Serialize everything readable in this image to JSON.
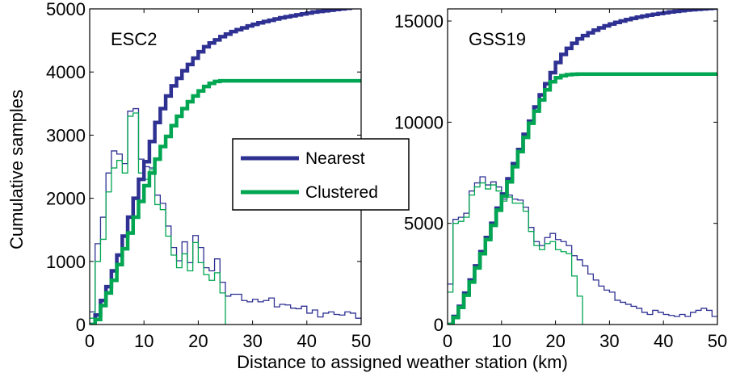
{
  "shared": {
    "xlabel": "Distance to assigned weather station (km)",
    "ylabel": "Cumulative samples",
    "legend": [
      {
        "name": "Nearest",
        "color": "#2e3192"
      },
      {
        "name": "Clustered",
        "color": "#00a651"
      }
    ]
  },
  "chart_data": [
    {
      "type": "line",
      "title": "ESC2",
      "xlim": [
        0,
        50
      ],
      "ylim": [
        0,
        5000
      ],
      "xticks": [
        0,
        10,
        20,
        30,
        40,
        50
      ],
      "yticks": [
        0,
        1000,
        2000,
        3000,
        4000,
        5000
      ],
      "cumulative": [
        {
          "name": "Nearest",
          "x": [
            0,
            1,
            2,
            3,
            4,
            5,
            6,
            7,
            8,
            9,
            10,
            11,
            12,
            13,
            14,
            15,
            16,
            17,
            18,
            19,
            20,
            21,
            22,
            23,
            24,
            25,
            26,
            27,
            28,
            29,
            30,
            31,
            32,
            33,
            34,
            35,
            36,
            37,
            38,
            39,
            40,
            41,
            42,
            43,
            44,
            45,
            46,
            47,
            48,
            49,
            50
          ],
          "values": [
            0,
            150,
            380,
            600,
            850,
            1100,
            1400,
            1700,
            2000,
            2300,
            2580,
            2900,
            3200,
            3420,
            3620,
            3780,
            3900,
            4020,
            4120,
            4220,
            4320,
            4400,
            4460,
            4510,
            4560,
            4600,
            4640,
            4670,
            4700,
            4730,
            4755,
            4780,
            4800,
            4820,
            4840,
            4860,
            4875,
            4890,
            4905,
            4920,
            4935,
            4950,
            4960,
            4970,
            4980,
            4990,
            5000,
            5010,
            5020,
            5030,
            5030
          ]
        },
        {
          "name": "Clustered",
          "x": [
            0,
            1,
            2,
            3,
            4,
            5,
            6,
            7,
            8,
            9,
            10,
            11,
            12,
            13,
            14,
            15,
            16,
            17,
            18,
            19,
            20,
            21,
            22,
            23,
            24,
            25,
            50
          ],
          "values": [
            0,
            80,
            300,
            500,
            700,
            950,
            1200,
            1450,
            1700,
            1950,
            2200,
            2400,
            2620,
            2820,
            2980,
            3150,
            3300,
            3420,
            3530,
            3620,
            3700,
            3770,
            3820,
            3850,
            3860,
            3860,
            3860
          ]
        }
      ],
      "histogram": [
        {
          "name": "Nearest",
          "x": [
            0,
            1,
            2,
            3,
            4,
            5,
            6,
            7,
            8,
            9,
            10,
            11,
            12,
            13,
            14,
            15,
            16,
            17,
            18,
            19,
            20,
            21,
            22,
            23,
            24,
            25,
            26,
            27,
            28,
            29,
            30,
            31,
            32,
            33,
            34,
            35,
            36,
            37,
            38,
            39,
            40,
            41,
            42,
            43,
            44,
            45,
            46,
            47,
            48,
            49,
            50
          ],
          "values": [
            200,
            1280,
            1700,
            2400,
            2750,
            2700,
            2550,
            3380,
            3420,
            2620,
            2500,
            2480,
            2050,
            1920,
            1560,
            1220,
            1010,
            1310,
            980,
            1410,
            1220,
            900,
            850,
            1040,
            670,
            450,
            480,
            480,
            380,
            360,
            400,
            360,
            380,
            420,
            280,
            320,
            310,
            260,
            250,
            290,
            180,
            230,
            120,
            180,
            200,
            160,
            150,
            200,
            180,
            100,
            100
          ]
        },
        {
          "name": "Clustered",
          "x": [
            0,
            1,
            2,
            3,
            4,
            5,
            6,
            7,
            8,
            9,
            10,
            11,
            12,
            13,
            14,
            15,
            16,
            17,
            18,
            19,
            20,
            21,
            22,
            23,
            24,
            25
          ],
          "values": [
            100,
            1000,
            1350,
            2100,
            2480,
            2600,
            2400,
            3300,
            3350,
            2400,
            2300,
            2450,
            1900,
            1820,
            1400,
            1100,
            900,
            1120,
            850,
            1300,
            980,
            790,
            700,
            820,
            500,
            0
          ]
        }
      ]
    },
    {
      "type": "line",
      "title": "GSS19",
      "xlim": [
        0,
        50
      ],
      "ylim": [
        0,
        15600
      ],
      "xticks": [
        0,
        10,
        20,
        30,
        40,
        50
      ],
      "yticks": [
        0,
        5000,
        10000,
        15000
      ],
      "cumulative": [
        {
          "name": "Nearest",
          "x": [
            0,
            1,
            2,
            3,
            4,
            5,
            6,
            7,
            8,
            9,
            10,
            11,
            12,
            13,
            14,
            15,
            16,
            17,
            18,
            19,
            20,
            21,
            22,
            23,
            24,
            25,
            26,
            27,
            28,
            29,
            30,
            31,
            32,
            33,
            34,
            35,
            36,
            37,
            38,
            39,
            40,
            41,
            42,
            43,
            44,
            45,
            46,
            47,
            48,
            49,
            50
          ],
          "values": [
            0,
            400,
            900,
            1550,
            2200,
            2900,
            3600,
            4300,
            5000,
            5750,
            6450,
            7200,
            7950,
            8650,
            9400,
            10050,
            10750,
            11350,
            11900,
            12450,
            12950,
            13350,
            13650,
            13900,
            14120,
            14280,
            14420,
            14550,
            14660,
            14760,
            14850,
            14930,
            15000,
            15070,
            15130,
            15190,
            15240,
            15290,
            15330,
            15370,
            15410,
            15450,
            15480,
            15510,
            15540,
            15560,
            15580,
            15600,
            15620,
            15640,
            15640
          ]
        },
        {
          "name": "Clustered",
          "x": [
            0,
            1,
            2,
            3,
            4,
            5,
            6,
            7,
            8,
            9,
            10,
            11,
            12,
            13,
            14,
            15,
            16,
            17,
            18,
            19,
            20,
            21,
            22,
            23,
            24,
            25,
            50
          ],
          "values": [
            0,
            350,
            850,
            1450,
            2100,
            2800,
            3500,
            4200,
            4900,
            5650,
            6350,
            7050,
            7800,
            8550,
            9250,
            9950,
            10550,
            11100,
            11600,
            12000,
            12200,
            12300,
            12350,
            12370,
            12380,
            12380,
            12380
          ]
        }
      ],
      "histogram": [
        {
          "name": "Nearest",
          "x": [
            0,
            1,
            2,
            3,
            4,
            5,
            6,
            7,
            8,
            9,
            10,
            11,
            12,
            13,
            14,
            15,
            16,
            17,
            18,
            19,
            20,
            21,
            22,
            23,
            24,
            25,
            26,
            27,
            28,
            29,
            30,
            31,
            32,
            33,
            34,
            35,
            36,
            37,
            38,
            39,
            40,
            41,
            42,
            43,
            44,
            45,
            46,
            47,
            48,
            49,
            50
          ],
          "values": [
            2000,
            5200,
            5300,
            5500,
            6600,
            7000,
            7300,
            6900,
            7050,
            6800,
            6200,
            6400,
            6200,
            6150,
            5800,
            4800,
            4100,
            3900,
            4300,
            4500,
            4200,
            4100,
            3900,
            3400,
            3200,
            2900,
            2500,
            2200,
            1900,
            1700,
            1600,
            1200,
            1100,
            1000,
            900,
            800,
            600,
            500,
            700,
            600,
            500,
            450,
            400,
            500,
            400,
            600,
            700,
            800,
            700,
            400,
            400
          ]
        },
        {
          "name": "Clustered",
          "x": [
            0,
            1,
            2,
            3,
            4,
            5,
            6,
            7,
            8,
            9,
            10,
            11,
            12,
            13,
            14,
            15,
            16,
            17,
            18,
            19,
            20,
            21,
            22,
            23,
            24,
            25
          ],
          "values": [
            1600,
            5000,
            5100,
            5300,
            6400,
            6800,
            7000,
            6700,
            6900,
            6600,
            6100,
            6300,
            6000,
            6000,
            5600,
            4600,
            3900,
            3700,
            4000,
            4100,
            3700,
            3600,
            3500,
            2400,
            1400,
            0
          ]
        }
      ]
    }
  ]
}
